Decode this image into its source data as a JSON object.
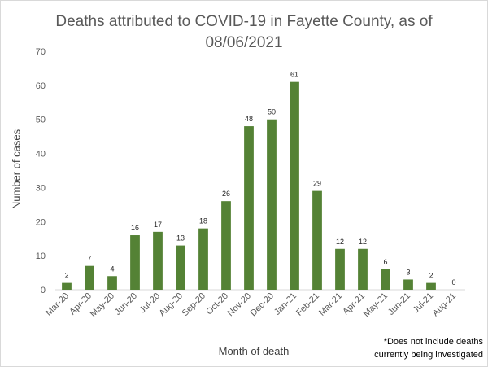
{
  "chart_data": {
    "type": "bar",
    "title_line1": "Deaths attributed to COVID-19 in Fayette County, as of",
    "title_line2": "08/06/2021",
    "xlabel": "Month of death",
    "ylabel": "Number of cases",
    "ylim": [
      0,
      70
    ],
    "yticks": [
      0,
      10,
      20,
      30,
      40,
      50,
      60,
      70
    ],
    "categories": [
      "Mar-20",
      "Apr-20",
      "May-20",
      "Jun-20",
      "Jul-20",
      "Aug-20",
      "Sep-20",
      "Oct-20",
      "Nov-20",
      "Dec-20",
      "Jan-21",
      "Feb-21",
      "Mar-21",
      "Apr-21",
      "May-21",
      "Jun-21",
      "Jul-21",
      "Aug-21"
    ],
    "values": [
      2,
      7,
      4,
      16,
      17,
      13,
      18,
      26,
      48,
      50,
      61,
      29,
      12,
      12,
      6,
      3,
      2,
      0
    ],
    "bar_color": "#548235",
    "grid": false,
    "legend": "none",
    "footnote_line1": "*Does not include deaths",
    "footnote_line2": "currently being investigated"
  }
}
